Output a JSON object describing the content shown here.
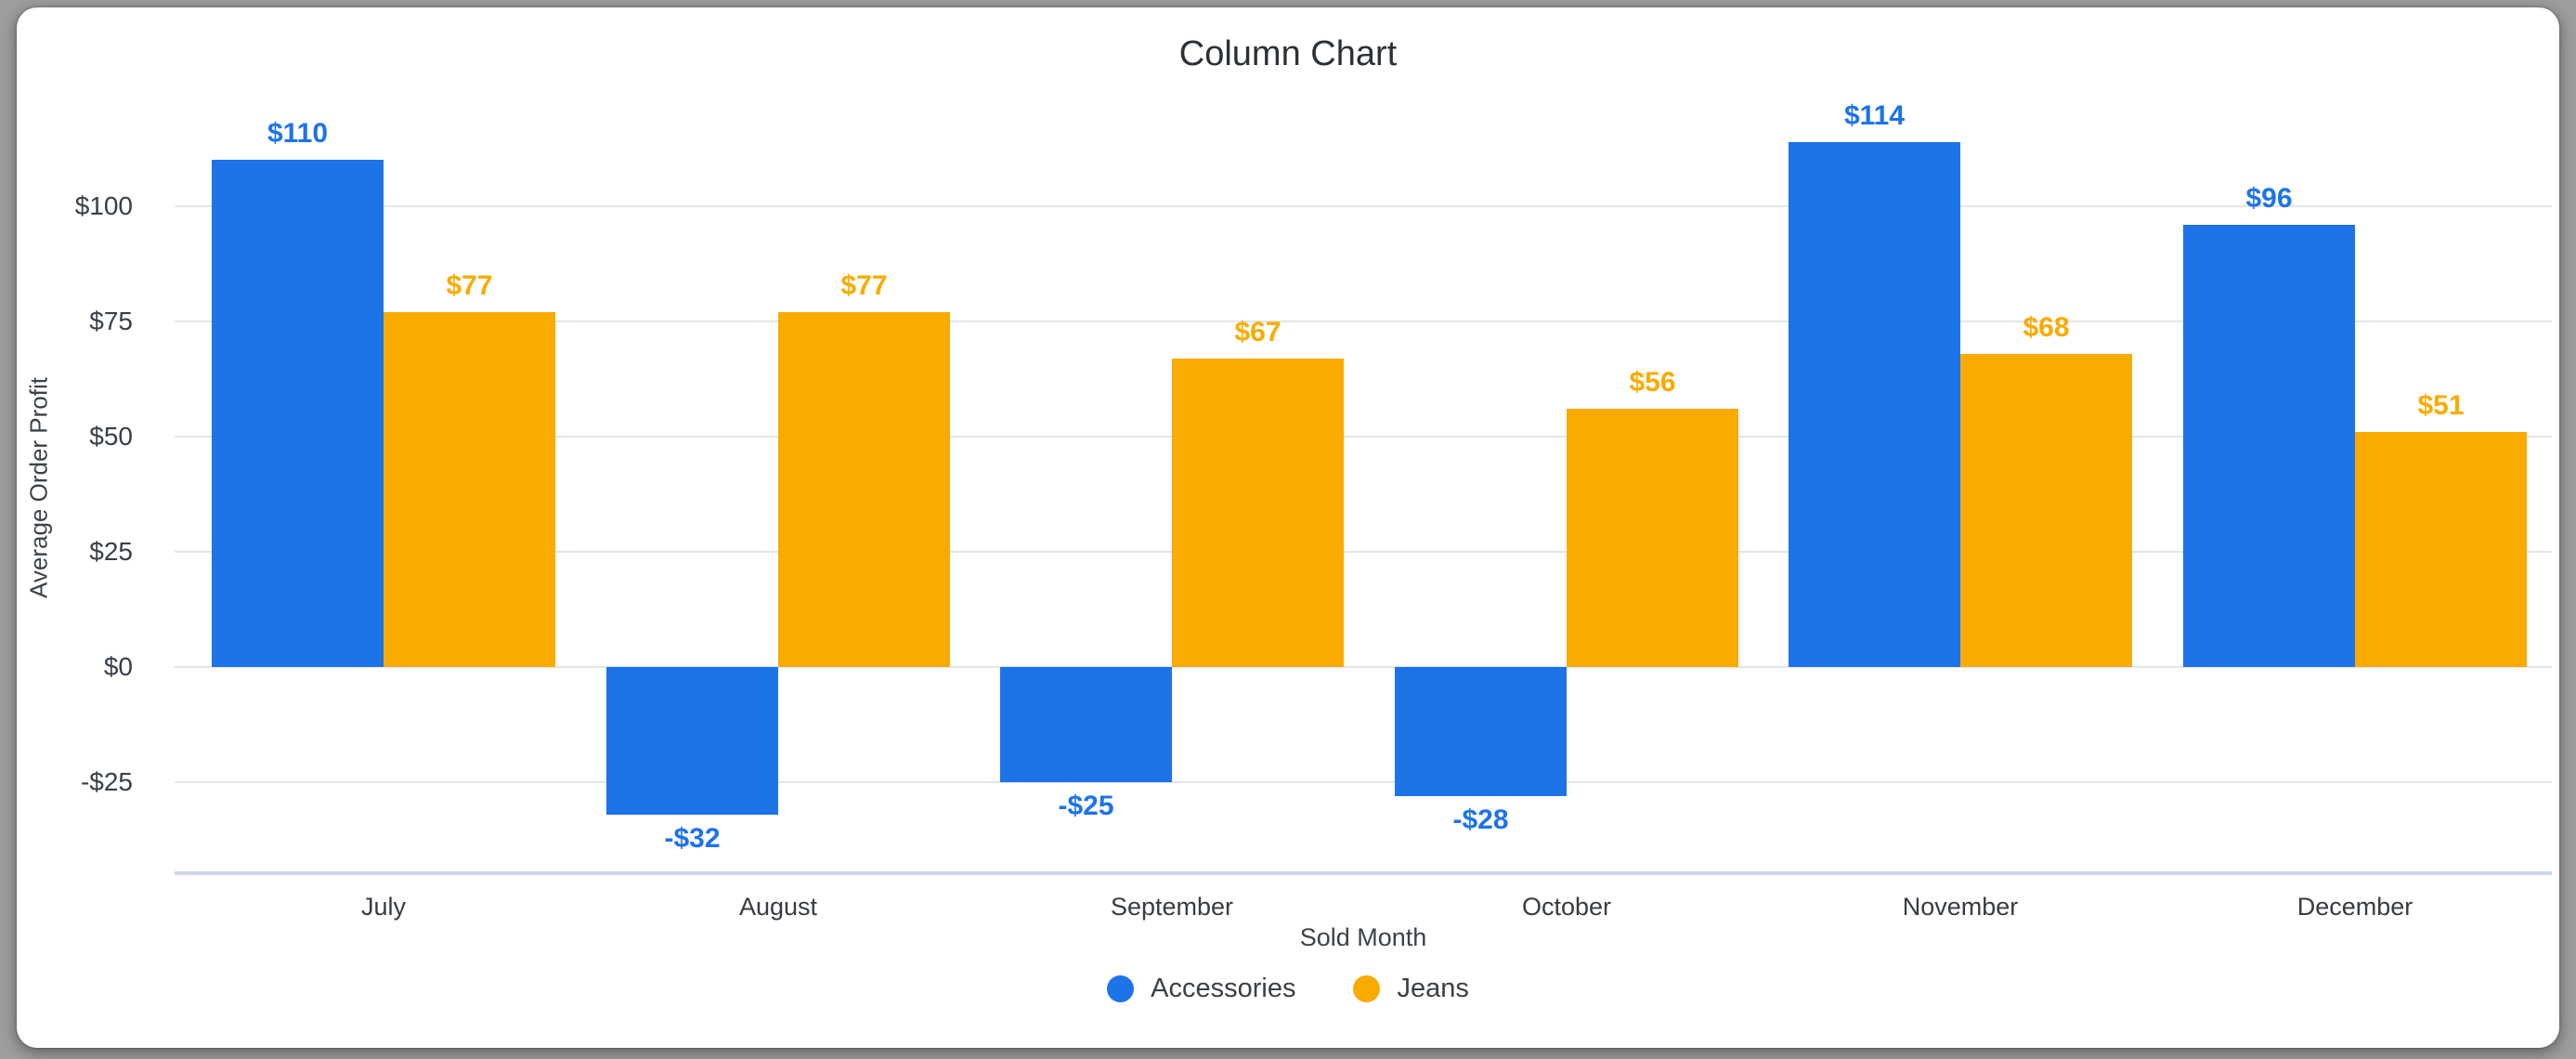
{
  "page": {
    "background": "#9e9e9e",
    "card_background": "#ffffff"
  },
  "chart_data": {
    "type": "bar",
    "title": "Column Chart",
    "xlabel": "Sold Month",
    "ylabel": "Average Order Profit",
    "categories": [
      "July",
      "August",
      "September",
      "October",
      "November",
      "December"
    ],
    "series": [
      {
        "name": "Accessories",
        "color": "#1d73e8",
        "values": [
          110,
          -32,
          -25,
          -28,
          114,
          96
        ],
        "labels": [
          "$110",
          "-$32",
          "-$25",
          "-$28",
          "$114",
          "$96"
        ]
      },
      {
        "name": "Jeans",
        "color": "#f9ab00",
        "values": [
          77,
          77,
          67,
          56,
          68,
          51
        ],
        "labels": [
          "$77",
          "$77",
          "$67",
          "$56",
          "$68",
          "$51"
        ]
      }
    ],
    "y_ticks": [
      {
        "value": 100,
        "label": "$100"
      },
      {
        "value": 75,
        "label": "$75"
      },
      {
        "value": 50,
        "label": "$50"
      },
      {
        "value": 25,
        "label": "$25"
      },
      {
        "value": 0,
        "label": "$0"
      },
      {
        "value": -25,
        "label": "-$25"
      }
    ],
    "ylim": [
      -45,
      123
    ],
    "grid": true,
    "legend_position": "bottom",
    "gridline_color": "#e4e5e8",
    "baseline_color": "#ccd6ec"
  }
}
